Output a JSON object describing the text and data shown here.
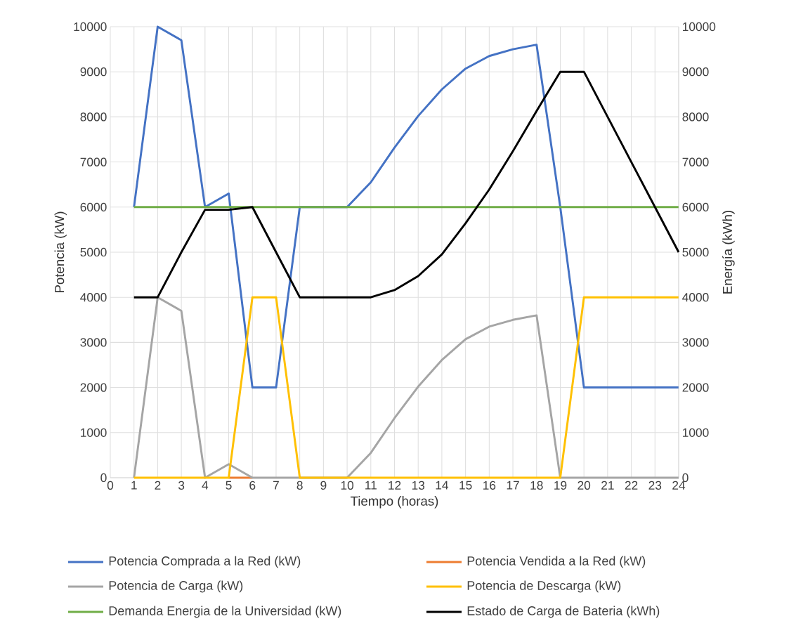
{
  "chart_data": {
    "type": "line",
    "xlabel": "Tiempo (horas)",
    "ylabel": "Potencia (kW)",
    "y2label": "Energía (kWh)",
    "x": [
      1,
      2,
      3,
      4,
      5,
      6,
      7,
      8,
      9,
      10,
      11,
      12,
      13,
      14,
      15,
      16,
      17,
      18,
      19,
      20,
      21,
      22,
      23,
      24
    ],
    "xlim": [
      0,
      24
    ],
    "xticks": [
      0,
      1,
      2,
      3,
      4,
      5,
      6,
      7,
      8,
      9,
      10,
      11,
      12,
      13,
      14,
      15,
      16,
      17,
      18,
      19,
      20,
      21,
      22,
      23,
      24
    ],
    "ylim": [
      0,
      10000
    ],
    "yticks": [
      0,
      1000,
      2000,
      3000,
      4000,
      5000,
      6000,
      7000,
      8000,
      9000,
      10000
    ],
    "y2lim": [
      0,
      10000
    ],
    "y2ticks": [
      0,
      1000,
      2000,
      3000,
      4000,
      5000,
      6000,
      7000,
      8000,
      9000,
      10000
    ],
    "grid": true,
    "legend": "bottom",
    "series": [
      {
        "name": "Potencia Comprada a la Red (kW)",
        "color": "#4472c4",
        "values": [
          6000,
          10000,
          9700,
          6000,
          6300,
          2000,
          2000,
          6000,
          6000,
          6000,
          6550,
          7320,
          8020,
          8610,
          9070,
          9350,
          9500,
          9600,
          6000,
          2000,
          2000,
          2000,
          2000,
          2000
        ]
      },
      {
        "name": "Potencia Vendida a la Red (kW)",
        "color": "#ed7d31",
        "values": [
          null,
          null,
          null,
          null,
          0,
          0,
          null,
          null,
          null,
          null,
          null,
          null,
          null,
          null,
          null,
          null,
          null,
          null,
          null,
          null,
          null,
          null,
          null,
          null
        ]
      },
      {
        "name": "Potencia de Carga (kW)",
        "color": "#a5a5a5",
        "values": [
          0,
          4000,
          3700,
          0,
          300,
          0,
          0,
          0,
          0,
          0,
          550,
          1320,
          2020,
          2610,
          3070,
          3350,
          3500,
          3600,
          0,
          0,
          0,
          0,
          0,
          0
        ]
      },
      {
        "name": "Potencia de Descarga (kW)",
        "color": "#ffc000",
        "values": [
          0,
          0,
          0,
          0,
          0,
          4000,
          4000,
          0,
          0,
          0,
          0,
          0,
          0,
          0,
          0,
          0,
          0,
          0,
          0,
          4000,
          4000,
          4000,
          4000,
          4000
        ]
      },
      {
        "name": "Demanda Energia de la Universidad (kW)",
        "color": "#70ad47",
        "values": [
          6000,
          6000,
          6000,
          6000,
          6000,
          6000,
          6000,
          6000,
          6000,
          6000,
          6000,
          6000,
          6000,
          6000,
          6000,
          6000,
          6000,
          6000,
          6000,
          6000,
          6000,
          6000,
          6000,
          6000
        ]
      },
      {
        "name": "Estado de Carga de Bateria (kWh)",
        "color": "#000000",
        "axis": "y2",
        "values": [
          4000,
          4000,
          5000,
          5940,
          5940,
          6000,
          5000,
          4000,
          4000,
          4000,
          4000,
          4160,
          4470,
          4950,
          5640,
          6390,
          7240,
          8130,
          9000,
          9000,
          8000,
          7000,
          6000,
          5000
        ]
      }
    ]
  }
}
